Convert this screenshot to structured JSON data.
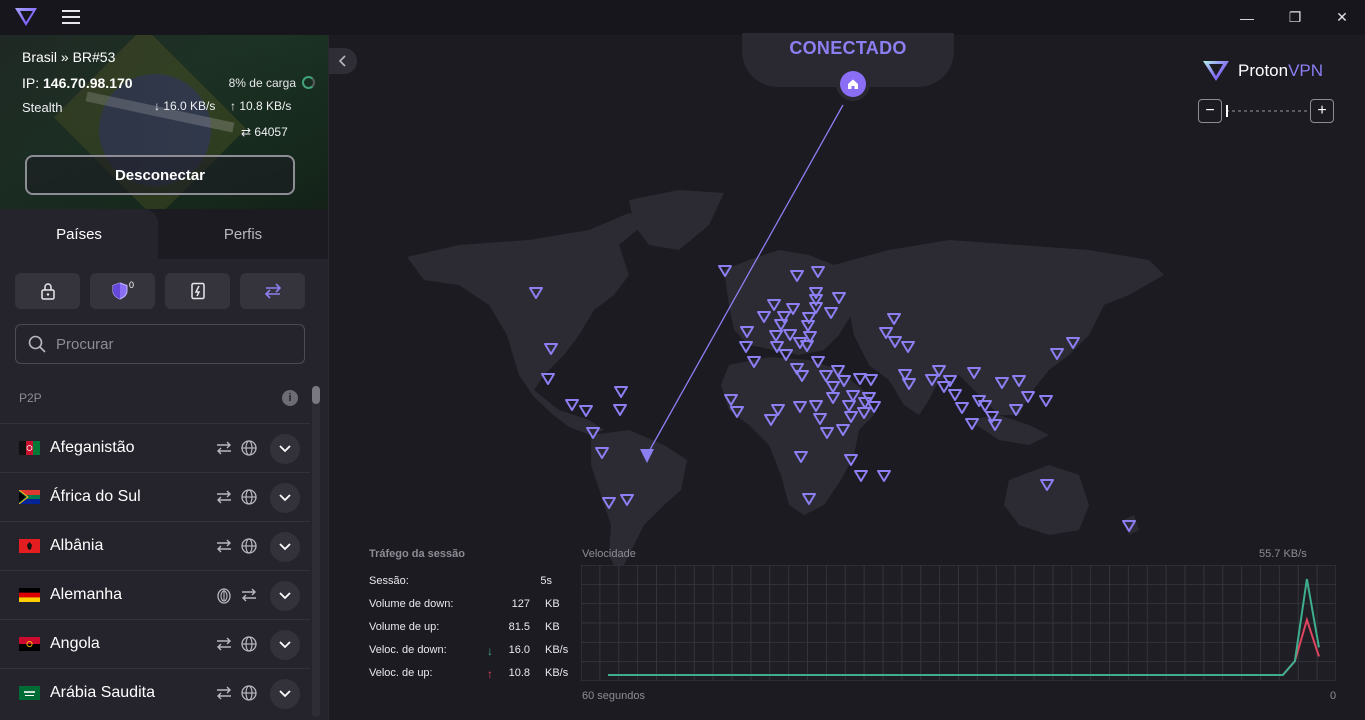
{
  "window": {
    "minimize": "—",
    "maximize": "❐",
    "close": "✕"
  },
  "connection": {
    "server": "Brasil » BR#53",
    "ip_label": "IP:",
    "ip": "146.70.98.170",
    "load": "8% de carga",
    "load_percent": 8,
    "protocol": "Stealth",
    "download": "16.0 KB/s",
    "upload": "10.8 KB/s",
    "port": "64057",
    "disconnect_label": "Desconectar"
  },
  "tabs": [
    {
      "label": "Países",
      "active": true
    },
    {
      "label": "Perfis",
      "active": false
    }
  ],
  "filters": {
    "secure_core_icon": "lock-icon",
    "netshield_icon": "shield-icon",
    "netshield_badge": "0",
    "split_tunnel_icon": "split-icon",
    "port_forward_icon": "swap-icon"
  },
  "search": {
    "placeholder": "Procurar",
    "value": ""
  },
  "list": {
    "section": "P2P",
    "info": "i",
    "countries": [
      {
        "name": "Afeganistão",
        "features": [
          "p2p",
          "tor"
        ]
      },
      {
        "name": "África do Sul",
        "features": [
          "p2p",
          "tor"
        ]
      },
      {
        "name": "Albânia",
        "features": [
          "p2p",
          "tor"
        ]
      },
      {
        "name": "Alemanha",
        "features": [
          "tor",
          "p2p"
        ]
      },
      {
        "name": "Angola",
        "features": [
          "p2p",
          "tor"
        ]
      },
      {
        "name": "Arábia Saudita",
        "features": [
          "p2p",
          "tor"
        ]
      }
    ]
  },
  "map": {
    "status": "CONECTADO",
    "brand_proton": "Proton",
    "brand_vpn": "VPN",
    "zoom_out": "−",
    "zoom_in": "+"
  },
  "session": {
    "title": "Tráfego da sessão",
    "rows": [
      {
        "label": "Sessão:",
        "value": "5s",
        "unit": ""
      },
      {
        "label": "Volume de down:",
        "value": "127",
        "unit": "KB"
      },
      {
        "label": "Volume de up:",
        "value": "81.5",
        "unit": "KB"
      },
      {
        "label": "Veloc. de down:",
        "value": "16.0",
        "unit": "KB/s",
        "arrow": "↓"
      },
      {
        "label": "Veloc. de up:",
        "value": "10.8",
        "unit": "KB/s",
        "arrow": "↑"
      }
    ]
  },
  "speed_chart": {
    "label": "Velocidade",
    "max_label": "55.7  KB/s",
    "left_label": "60 segundos",
    "right_label": "0"
  },
  "chart_data": {
    "type": "line",
    "x": [
      -60,
      -4,
      -3,
      -2,
      -1
    ],
    "series": [
      {
        "name": "Veloc. de down",
        "color": "#3fae8c",
        "values": [
          0,
          0,
          8,
          55.7,
          16.0
        ]
      },
      {
        "name": "Veloc. de up",
        "color": "#e0455f",
        "values": [
          0,
          0,
          8,
          32,
          10.8
        ]
      }
    ],
    "ylim": [
      0,
      55.7
    ],
    "grid": true
  }
}
